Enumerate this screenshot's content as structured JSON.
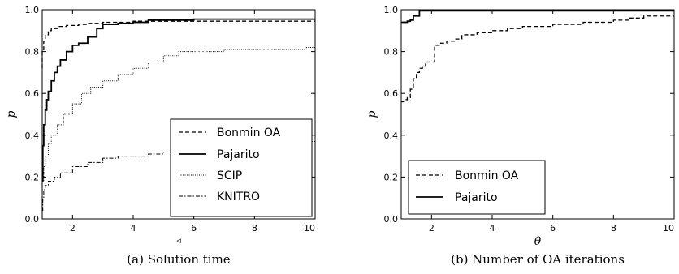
{
  "chart_data": [
    {
      "type": "line",
      "caption": "(a) Solution time",
      "xlabel": "◃",
      "ylabel": "p",
      "xlim": [
        1,
        10
      ],
      "ylim": [
        0,
        1
      ],
      "xticks": [
        2,
        4,
        6,
        8,
        10
      ],
      "yticks": [
        0.0,
        0.2,
        0.4,
        0.6,
        0.8,
        1.0
      ],
      "grid": false,
      "legend": "bottom-right",
      "series": [
        {
          "name": "Bonmin OA",
          "style": "dashed",
          "x": [
            1.0,
            1.0,
            1.05,
            1.1,
            1.2,
            1.3,
            1.5,
            1.8,
            2.2,
            2.5,
            3.0,
            4.0,
            6.0,
            8.0,
            10.0
          ],
          "y": [
            0.72,
            0.8,
            0.85,
            0.88,
            0.9,
            0.91,
            0.92,
            0.925,
            0.93,
            0.935,
            0.94,
            0.945,
            0.945,
            0.945,
            0.945
          ]
        },
        {
          "name": "Pajarito",
          "style": "solid",
          "x": [
            1.0,
            1.02,
            1.05,
            1.1,
            1.15,
            1.2,
            1.3,
            1.4,
            1.5,
            1.6,
            1.8,
            2.0,
            2.2,
            2.5,
            2.8,
            3.0,
            3.5,
            4.0,
            4.5,
            5.0,
            6.0,
            10.0
          ],
          "y": [
            0.18,
            0.35,
            0.45,
            0.52,
            0.57,
            0.61,
            0.66,
            0.7,
            0.73,
            0.76,
            0.8,
            0.83,
            0.84,
            0.87,
            0.91,
            0.93,
            0.935,
            0.94,
            0.95,
            0.95,
            0.955,
            0.955
          ]
        },
        {
          "name": "SCIP",
          "style": "dotted",
          "x": [
            1.0,
            1.05,
            1.1,
            1.2,
            1.3,
            1.5,
            1.7,
            2.0,
            2.3,
            2.6,
            3.0,
            3.5,
            4.0,
            4.5,
            5.0,
            5.5,
            6.0,
            7.0,
            8.0,
            9.0,
            9.7,
            10.0
          ],
          "y": [
            0.18,
            0.25,
            0.3,
            0.36,
            0.4,
            0.45,
            0.5,
            0.55,
            0.6,
            0.63,
            0.66,
            0.69,
            0.72,
            0.75,
            0.78,
            0.8,
            0.8,
            0.81,
            0.81,
            0.81,
            0.82,
            0.83
          ]
        },
        {
          "name": "KNITRO",
          "style": "dashdot",
          "x": [
            1.0,
            1.02,
            1.05,
            1.1,
            1.2,
            1.4,
            1.6,
            2.0,
            2.5,
            3.0,
            3.5,
            4.0,
            4.5,
            5.0,
            6.0,
            7.0,
            8.0,
            9.0,
            10.0
          ],
          "y": [
            0.04,
            0.1,
            0.14,
            0.16,
            0.18,
            0.2,
            0.22,
            0.25,
            0.27,
            0.29,
            0.3,
            0.3,
            0.31,
            0.32,
            0.34,
            0.35,
            0.36,
            0.37,
            0.38
          ]
        }
      ]
    },
    {
      "type": "line",
      "caption": "(b) Number of OA iterations",
      "xlabel": "θ",
      "ylabel": "p",
      "xlim": [
        1,
        10
      ],
      "ylim": [
        0,
        1
      ],
      "xticks": [
        2,
        4,
        6,
        8,
        10
      ],
      "yticks": [
        0.0,
        0.2,
        0.4,
        0.6,
        0.8,
        1.0
      ],
      "grid": false,
      "legend": "bottom-left",
      "series": [
        {
          "name": "Bonmin OA",
          "style": "dashed",
          "x": [
            1.0,
            1.1,
            1.2,
            1.3,
            1.4,
            1.5,
            1.6,
            1.7,
            1.8,
            2.0,
            2.1,
            2.3,
            2.5,
            2.8,
            3.0,
            3.5,
            4.0,
            4.5,
            5.0,
            6.0,
            7.0,
            8.0,
            8.5,
            9.0,
            10.0
          ],
          "y": [
            0.56,
            0.57,
            0.58,
            0.62,
            0.67,
            0.7,
            0.72,
            0.73,
            0.75,
            0.75,
            0.83,
            0.84,
            0.85,
            0.86,
            0.88,
            0.89,
            0.9,
            0.91,
            0.92,
            0.93,
            0.94,
            0.95,
            0.96,
            0.97,
            0.97
          ]
        },
        {
          "name": "Pajarito",
          "style": "solid",
          "x": [
            1.0,
            1.1,
            1.2,
            1.3,
            1.4,
            1.5,
            1.6,
            10.0
          ],
          "y": [
            0.94,
            0.94,
            0.945,
            0.95,
            0.97,
            0.97,
            0.995,
            0.995
          ]
        }
      ]
    }
  ]
}
